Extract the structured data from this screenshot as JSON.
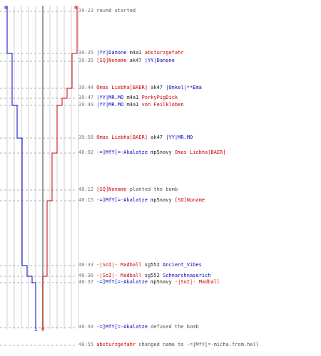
{
  "colors": {
    "ct": "#0000cc",
    "t": "#cc0000",
    "grid": "#bbbbbb",
    "dashed": "#999999",
    "axis": "#808080",
    "time": "#777777",
    "text": "#555555"
  },
  "start_counts": {
    "blue": "6",
    "red": "6"
  },
  "end_counts": {
    "blue": "1",
    "red": "0"
  },
  "events": [
    {
      "time": "39:23",
      "parts": [
        {
          "text": "round started",
          "cls": "txt"
        }
      ]
    },
    {
      "time": "39:35",
      "parts": [
        {
          "text": "|YY|Danone",
          "cls": "blu"
        },
        {
          "text": " m4a1 ",
          "cls": "blk"
        },
        {
          "text": "absturzgefahr",
          "cls": "red"
        }
      ]
    },
    {
      "time": "39:35",
      "parts": [
        {
          "text": "[SQ]Noname",
          "cls": "red"
        },
        {
          "text": " ak47 ",
          "cls": "blk"
        },
        {
          "text": "|YY|Danone",
          "cls": "blu"
        }
      ]
    },
    {
      "time": "39:44",
      "parts": [
        {
          "text": "Omas Liebha[BAER]",
          "cls": "red"
        },
        {
          "text": " ak47 ",
          "cls": "blk"
        },
        {
          "text": "|Onkel|**Ema",
          "cls": "blu"
        }
      ]
    },
    {
      "time": "39:47",
      "parts": [
        {
          "text": "|YY|MR.MO",
          "cls": "blu"
        },
        {
          "text": " m4a1 ",
          "cls": "blk"
        },
        {
          "text": "PorkyPigDick",
          "cls": "red"
        }
      ]
    },
    {
      "time": "39:49",
      "parts": [
        {
          "text": "|YY|MR.MO",
          "cls": "blu"
        },
        {
          "text": " m4a1 ",
          "cls": "blk"
        },
        {
          "text": "von Feilkloben",
          "cls": "red"
        }
      ]
    },
    {
      "time": "39:58",
      "parts": [
        {
          "text": "Omas Liebha[BAER]",
          "cls": "red"
        },
        {
          "text": " ak47 ",
          "cls": "blk"
        },
        {
          "text": "|YY|MR.MO",
          "cls": "blu"
        }
      ]
    },
    {
      "time": "40:02",
      "parts": [
        {
          "text": "-=]MfY[=-Akalatze",
          "cls": "blu"
        },
        {
          "text": " mp5navy ",
          "cls": "blk"
        },
        {
          "text": "Omas Liebha[BAER]",
          "cls": "red"
        }
      ]
    },
    {
      "time": "40:12",
      "parts": [
        {
          "text": "[SQ]Noname",
          "cls": "red"
        },
        {
          "text": " planted the bomb",
          "cls": "txt"
        }
      ]
    },
    {
      "time": "40:15",
      "parts": [
        {
          "text": "-=]MfY[=-Akalatze",
          "cls": "blu"
        },
        {
          "text": " mp5navy ",
          "cls": "blk"
        },
        {
          "text": "[SQ]Noname",
          "cls": "red"
        }
      ]
    },
    {
      "time": "40:33",
      "parts": [
        {
          "text": "-|SoI|- Madball",
          "cls": "red"
        },
        {
          "text": " sg552 ",
          "cls": "blk"
        },
        {
          "text": "Ancient_Vibes",
          "cls": "blu"
        }
      ]
    },
    {
      "time": "40:36",
      "parts": [
        {
          "text": "-|SoI|- Madball",
          "cls": "red"
        },
        {
          "text": " sg552 ",
          "cls": "blk"
        },
        {
          "text": "Schnarchnaserich",
          "cls": "blu"
        }
      ]
    },
    {
      "time": "40:37",
      "parts": [
        {
          "text": "-=]MfY[=-Akalatze",
          "cls": "blu"
        },
        {
          "text": " mp5navy ",
          "cls": "blk"
        },
        {
          "text": "-|SoI|- Madball",
          "cls": "red"
        }
      ]
    },
    {
      "time": "40:50",
      "parts": [
        {
          "text": "-=]MfY[=-Akalatze",
          "cls": "blu"
        },
        {
          "text": " defused the bomb",
          "cls": "txt"
        }
      ]
    },
    {
      "time": "40:55",
      "parts": [
        {
          "text": "absturzgefahr",
          "cls": "red"
        },
        {
          "text": " changed name to ",
          "cls": "txt"
        },
        {
          "text": "-=]MfY[=-micha.from.hell",
          "cls": "txt"
        }
      ]
    }
  ]
}
